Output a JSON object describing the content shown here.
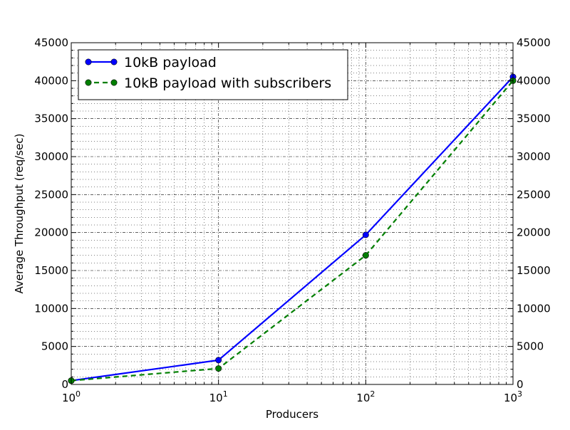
{
  "chart_data": {
    "type": "line",
    "title": "",
    "xlabel": "Producers",
    "ylabel": "Average Throughput (req/sec)",
    "x_scale": "log",
    "x_base": 10,
    "xlim": [
      1,
      1000
    ],
    "ylim": [
      0,
      45000
    ],
    "y_ticks": [
      0,
      5000,
      10000,
      15000,
      20000,
      25000,
      30000,
      35000,
      40000,
      45000
    ],
    "x_tick_exponents": [
      0,
      1,
      2,
      3
    ],
    "x_tick_base_label": "10",
    "right_y_axis_mirrored": true,
    "grid": true,
    "legend_position": "top-left",
    "x": [
      1,
      10,
      100,
      1000
    ],
    "series": [
      {
        "name": "10kB payload",
        "values": [
          500,
          3200,
          19700,
          40500
        ],
        "color": "#0000ff",
        "line_style": "solid",
        "marker": "circle"
      },
      {
        "name": "10kB payload with subscribers",
        "values": [
          500,
          2100,
          17000,
          40000
        ],
        "color": "#007f00",
        "line_style": "dashed",
        "marker": "circle"
      }
    ]
  }
}
